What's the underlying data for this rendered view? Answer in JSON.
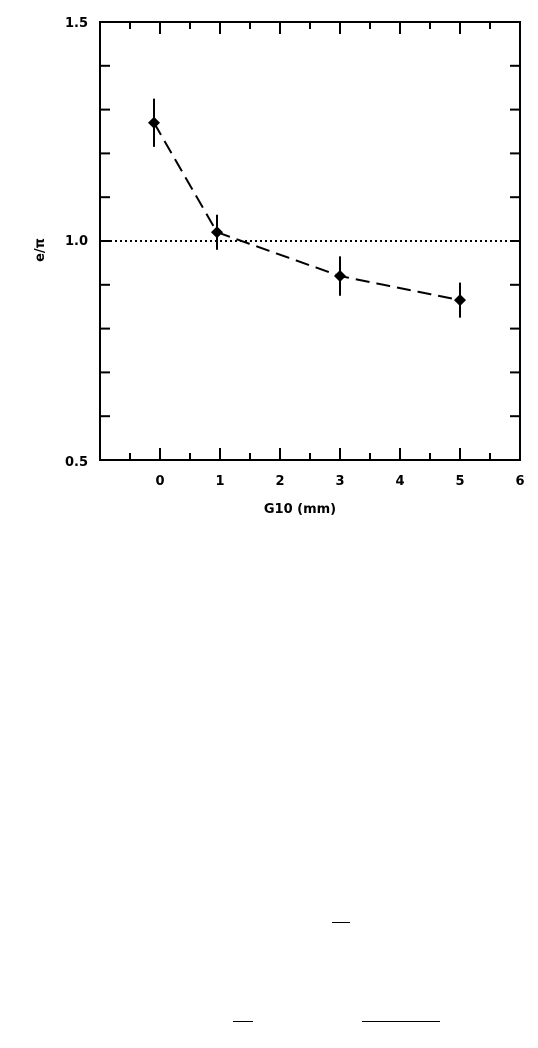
{
  "chart_data": {
    "type": "line",
    "xlabel": "G10 (mm)",
    "ylabel": "e/π",
    "xlim": [
      -1,
      6
    ],
    "ylim": [
      0.5,
      1.5
    ],
    "xticks": [
      "0",
      "1",
      "2",
      "3",
      "4",
      "5",
      "6"
    ],
    "yticks": [
      "1.5",
      "1.0",
      "0.5"
    ],
    "reference_line": {
      "y": 1.0,
      "style": "dotted"
    },
    "series": [
      {
        "line_style": "dashed",
        "marker": "diamond",
        "x": [
          -0.1,
          0.95,
          3.0,
          5.0
        ],
        "y": [
          1.27,
          1.02,
          0.92,
          0.865
        ],
        "err": [
          0.055,
          0.04,
          0.045,
          0.04
        ]
      }
    ]
  }
}
